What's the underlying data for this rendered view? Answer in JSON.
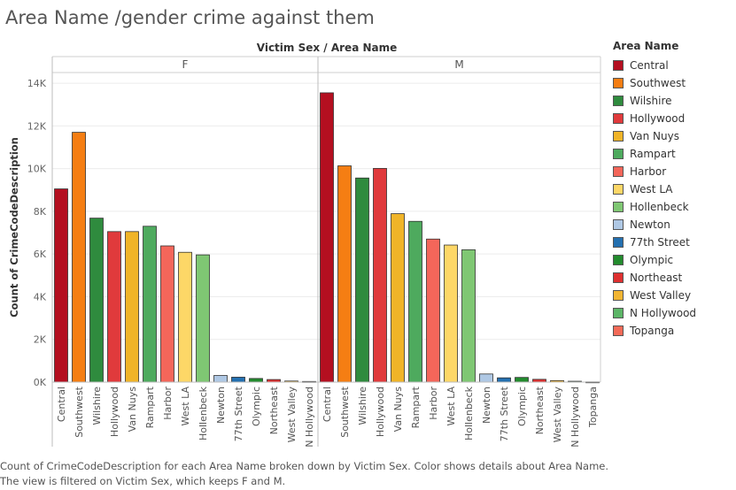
{
  "title": "Area Name /gender crime against them",
  "caption": {
    "line1": "Count of CrimeCodeDescription for each Area Name broken down by Victim Sex.  Color shows details about Area Name.",
    "line2": "The view is filtered on Victim Sex, which keeps F and M."
  },
  "legend": {
    "title": "Area Name",
    "items": [
      {
        "label": "Central",
        "color": "#B40F20"
      },
      {
        "label": "Southwest",
        "color": "#F57E13"
      },
      {
        "label": "Wilshire",
        "color": "#2F8B3E"
      },
      {
        "label": "Hollywood",
        "color": "#E03A3C"
      },
      {
        "label": "Van Nuys",
        "color": "#F0B428"
      },
      {
        "label": "Rampart",
        "color": "#4EAA5E"
      },
      {
        "label": "Harbor",
        "color": "#F4665A"
      },
      {
        "label": "West LA",
        "color": "#FDD767"
      },
      {
        "label": "Hollenbeck",
        "color": "#7FC773"
      },
      {
        "label": "Newton",
        "color": "#AFC8E4"
      },
      {
        "label": "77th Street",
        "color": "#2470B0"
      },
      {
        "label": "Olympic",
        "color": "#238B2E"
      },
      {
        "label": "Northeast",
        "color": "#DE3030"
      },
      {
        "label": "West Valley",
        "color": "#F2B533"
      },
      {
        "label": "N Hollywood",
        "color": "#5CB567"
      },
      {
        "label": "Topanga",
        "color": "#F36A58"
      }
    ]
  },
  "chart_data": {
    "type": "bar",
    "title": "Area Name /gender crime against them",
    "column_header": "Victim Sex  /  Area Name",
    "ylabel": "Count of CrimeCodeDescription",
    "ylim": [
      0,
      14500
    ],
    "yticks": [
      0,
      2000,
      4000,
      6000,
      8000,
      10000,
      12000,
      14000
    ],
    "ytick_labels": [
      "0K",
      "2K",
      "4K",
      "6K",
      "8K",
      "10K",
      "12K",
      "14K"
    ],
    "panels": [
      {
        "name": "F",
        "categories": [
          "Central",
          "Southwest",
          "Wilshire",
          "Hollywood",
          "Van Nuys",
          "Rampart",
          "Harbor",
          "West LA",
          "Hollenbeck",
          "Newton",
          "77th Street",
          "Olympic",
          "Northeast",
          "West Valley",
          "N Hollywood"
        ],
        "values": [
          9050,
          11700,
          7680,
          7050,
          7050,
          7300,
          6380,
          6080,
          5960,
          310,
          230,
          170,
          120,
          50,
          30
        ]
      },
      {
        "name": "M",
        "categories": [
          "Central",
          "Southwest",
          "Wilshire",
          "Hollywood",
          "Van Nuys",
          "Rampart",
          "Harbor",
          "West LA",
          "Hollenbeck",
          "Newton",
          "77th Street",
          "Olympic",
          "Northeast",
          "West Valley",
          "N Hollywood",
          "Topanga"
        ],
        "values": [
          13550,
          10130,
          9560,
          10010,
          7890,
          7530,
          6700,
          6420,
          6200,
          380,
          200,
          220,
          130,
          70,
          40,
          10
        ]
      }
    ]
  }
}
